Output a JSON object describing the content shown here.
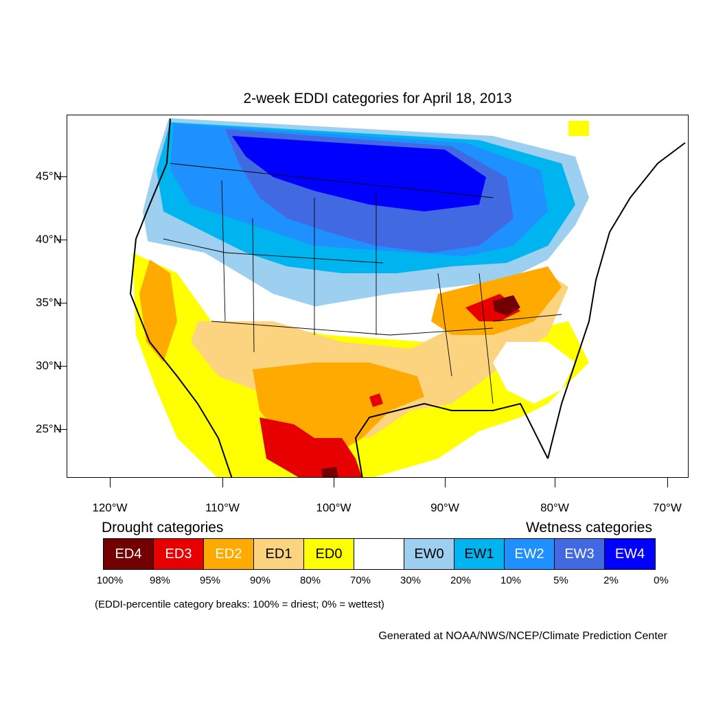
{
  "title": "2-week EDDI categories for April 18, 2013",
  "lat_labels": [
    "45°N",
    "40°N",
    "35°N",
    "30°N",
    "25°N"
  ],
  "lon_labels": [
    "120°W",
    "110°W",
    "100°W",
    "90°W",
    "80°W",
    "70°W"
  ],
  "legend": {
    "drought_title": "Drought categories",
    "wetness_title": "Wetness categories",
    "categories": [
      {
        "label": "ED4",
        "color": "#730000",
        "text_color": "#ffffff"
      },
      {
        "label": "ED3",
        "color": "#e60000",
        "text_color": "#ffffff"
      },
      {
        "label": "ED2",
        "color": "#ffaa00",
        "text_color": "#ffffff"
      },
      {
        "label": "ED1",
        "color": "#fcd37f",
        "text_color": "#000000"
      },
      {
        "label": "ED0",
        "color": "#ffff00",
        "text_color": "#000000"
      },
      {
        "label": "",
        "color": "#ffffff",
        "text_color": "#000000"
      },
      {
        "label": "EW0",
        "color": "#9ccff0",
        "text_color": "#000000"
      },
      {
        "label": "EW1",
        "color": "#00b4f0",
        "text_color": "#000000"
      },
      {
        "label": "EW2",
        "color": "#1e90ff",
        "text_color": "#ffffff"
      },
      {
        "label": "EW3",
        "color": "#4169e1",
        "text_color": "#ffffff"
      },
      {
        "label": "EW4",
        "color": "#0000ff",
        "text_color": "#ffffff"
      }
    ],
    "percentiles": [
      "100%",
      "98%",
      "95%",
      "90%",
      "80%",
      "70%",
      "30%",
      "20%",
      "10%",
      "5%",
      "2%",
      "0%"
    ]
  },
  "note": "(EDDI-percentile category breaks: 100% = driest; 0% = wettest)",
  "credit": "Generated at NOAA/NWS/NCEP/Climate Prediction Center"
}
